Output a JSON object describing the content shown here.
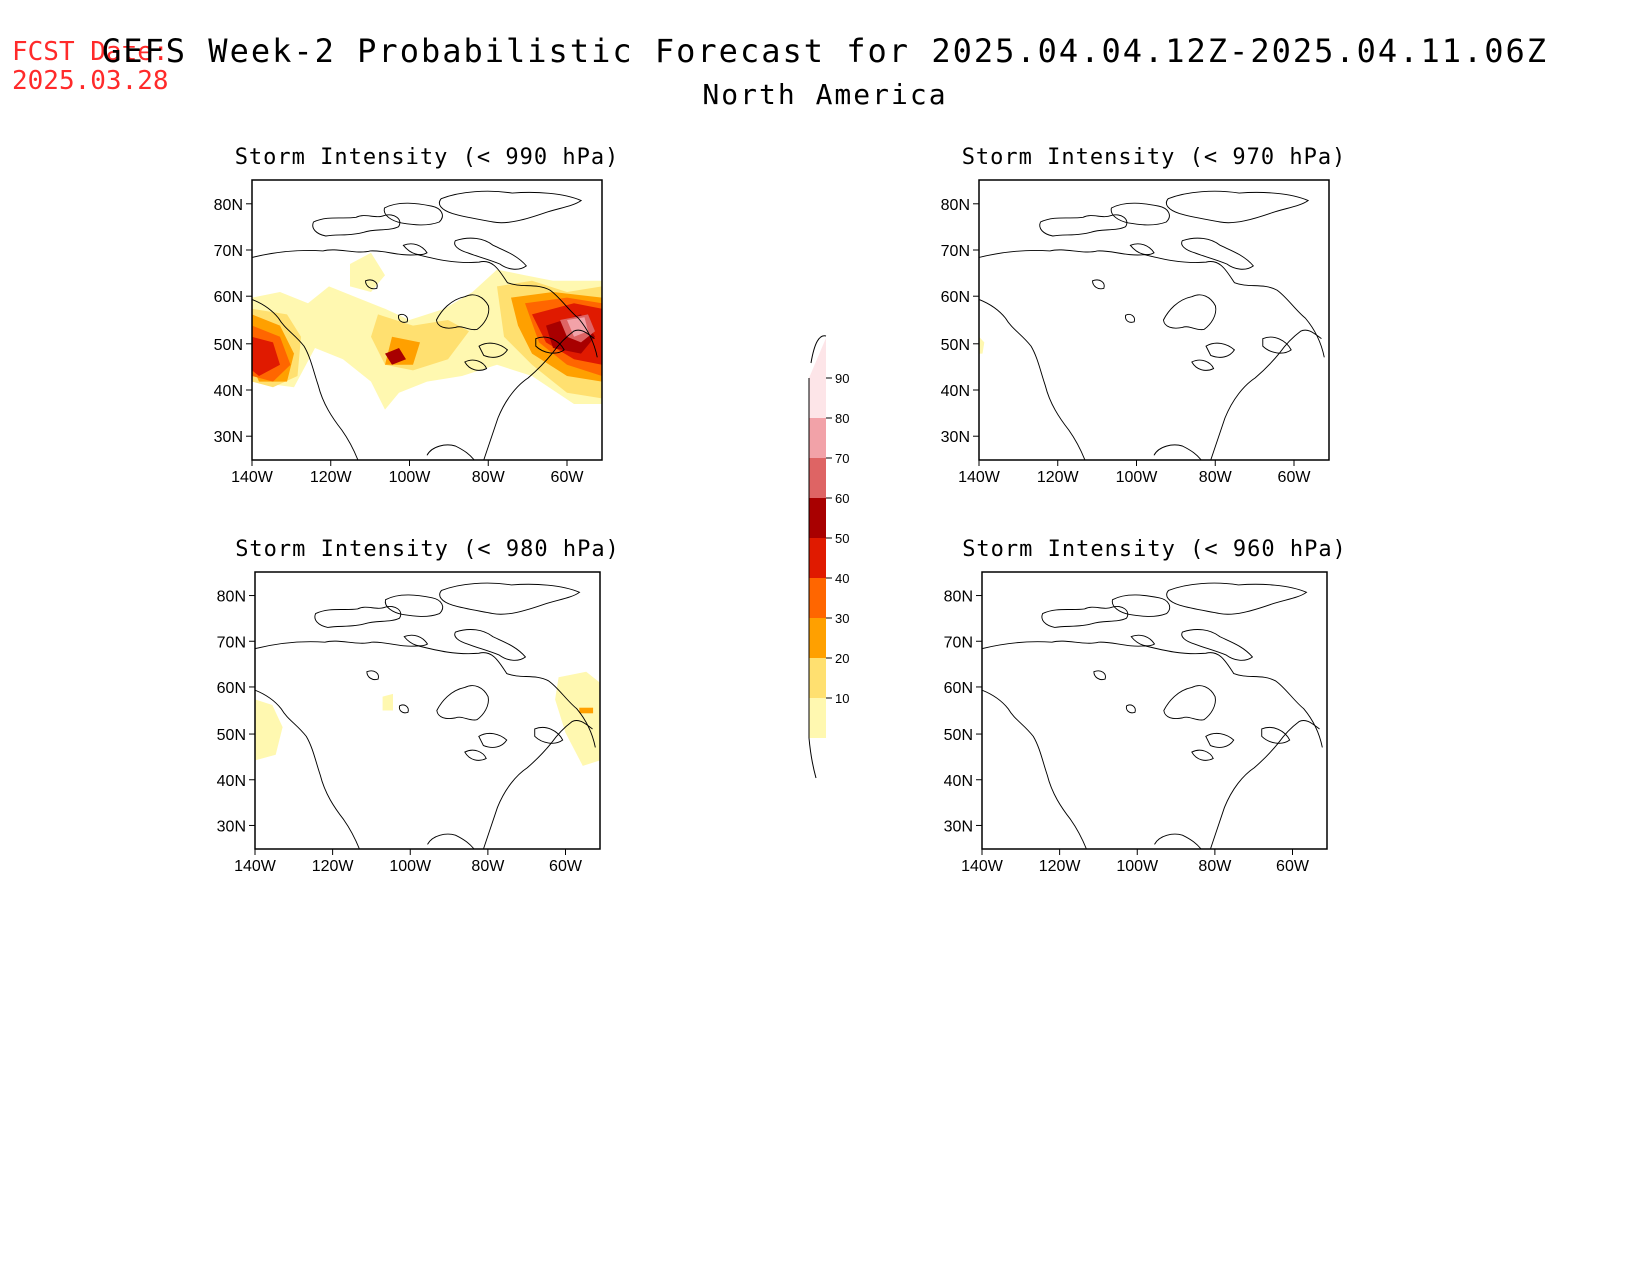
{
  "header": {
    "fcst_label": "FCST Date:",
    "fcst_date": "2025.03.28",
    "title": "GEFS Week-2 Probabilistic Forecast for 2025.04.04.12Z-2025.04.11.06Z",
    "subtitle": "North America"
  },
  "axes": {
    "lat_labels": [
      "80N",
      "70N",
      "60N",
      "50N",
      "40N",
      "30N"
    ],
    "lon_labels": [
      "140W",
      "120W",
      "100W",
      "80W",
      "60W"
    ]
  },
  "panels": [
    {
      "title": "Storm Intensity (< 990 hPa)"
    },
    {
      "title": "Storm Intensity (< 970 hPa)"
    },
    {
      "title": "Storm Intensity (< 980 hPa)"
    },
    {
      "title": "Storm Intensity (< 960 hPa)"
    }
  ],
  "colorbar": {
    "labels": [
      "90",
      "80",
      "70",
      "60",
      "50",
      "40",
      "30",
      "20",
      "10"
    ],
    "colors": [
      "#fde5e8",
      "#f2a2a8",
      "#de6464",
      "#a80000",
      "#e01a00",
      "#ff6600",
      "#ffa000",
      "#ffe070",
      "#fff8b0"
    ]
  },
  "colors": {
    "fcst_text": "#ff2a2a"
  }
}
